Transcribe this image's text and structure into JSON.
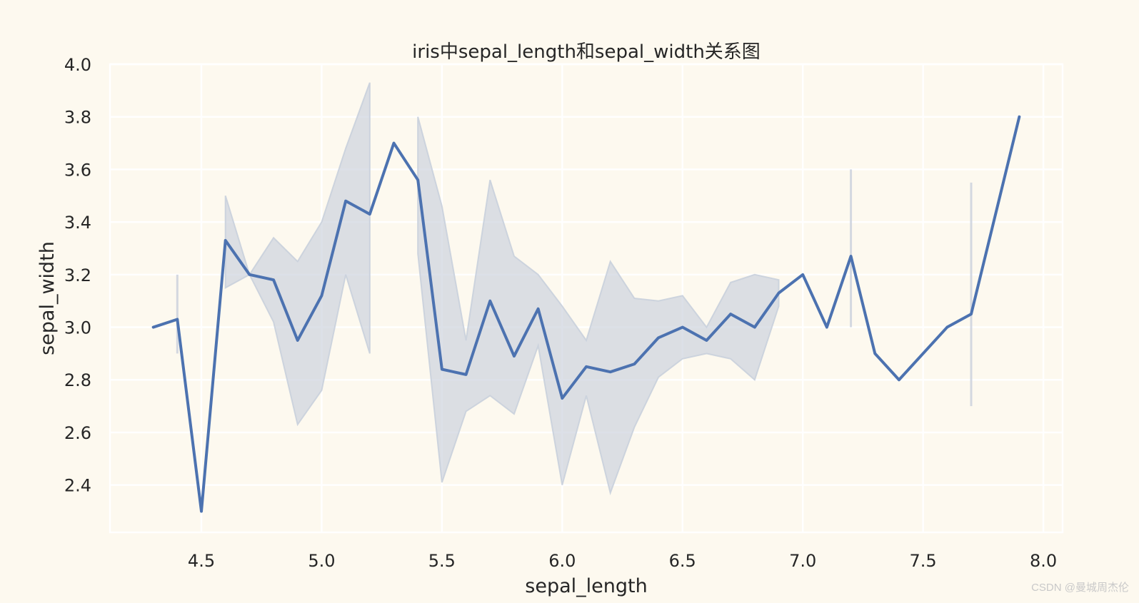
{
  "chart_data": {
    "type": "line",
    "title": "iris中sepal_length和sepal_width关系图",
    "xlabel": "sepal_length",
    "ylabel": "sepal_width",
    "xlim": [
      4.12,
      8.08
    ],
    "ylim": [
      2.22,
      4.0
    ],
    "x_ticks": [
      "4.5",
      "5.0",
      "5.5",
      "6.0",
      "6.5",
      "7.0",
      "7.5",
      "8.0"
    ],
    "y_ticks": [
      "2.4",
      "2.6",
      "2.8",
      "3.0",
      "3.2",
      "3.4",
      "3.6",
      "3.8",
      "4.0"
    ],
    "grid": true,
    "line_color": "#4c72b0",
    "band_color": "#c9d0dc",
    "background": "#fdf9ef",
    "series": [
      {
        "x": [
          4.3,
          4.4,
          4.5,
          4.6,
          4.7,
          4.8,
          4.9,
          5.0,
          5.1,
          5.2,
          5.3,
          5.4,
          5.5,
          5.6,
          5.7,
          5.8,
          5.9,
          6.0,
          6.1,
          6.2,
          6.3,
          6.4,
          6.5,
          6.6,
          6.7,
          6.8,
          6.9,
          7.0,
          7.1,
          7.2,
          7.3,
          7.4,
          7.6,
          7.7,
          7.9
        ],
        "y": [
          3.0,
          3.03,
          2.3,
          3.33,
          3.2,
          3.18,
          2.95,
          3.12,
          3.48,
          3.43,
          3.7,
          3.56,
          2.84,
          2.82,
          3.1,
          2.89,
          3.07,
          2.73,
          2.85,
          2.83,
          2.86,
          2.96,
          3.0,
          2.95,
          3.05,
          3.0,
          3.13,
          3.2,
          3.0,
          3.27,
          2.9,
          2.8,
          3.0,
          3.05,
          3.8
        ],
        "ci_low": [
          null,
          2.9,
          null,
          3.15,
          3.2,
          3.02,
          2.63,
          2.76,
          3.2,
          2.9,
          null,
          3.28,
          2.41,
          2.68,
          2.74,
          2.67,
          2.93,
          2.4,
          2.74,
          2.37,
          2.62,
          2.81,
          2.88,
          2.9,
          2.88,
          2.8,
          3.08,
          null,
          null,
          3.0,
          null,
          null,
          null,
          2.7,
          null
        ],
        "ci_high": [
          null,
          3.2,
          null,
          3.5,
          3.2,
          3.34,
          3.25,
          3.4,
          3.68,
          3.93,
          null,
          3.8,
          3.46,
          2.95,
          3.56,
          3.27,
          3.2,
          3.08,
          2.95,
          3.25,
          3.11,
          3.1,
          3.12,
          3.0,
          3.17,
          3.2,
          3.18,
          null,
          null,
          3.6,
          null,
          null,
          null,
          3.55,
          null
        ]
      }
    ]
  },
  "watermark": "CSDN @曼城周杰伦"
}
